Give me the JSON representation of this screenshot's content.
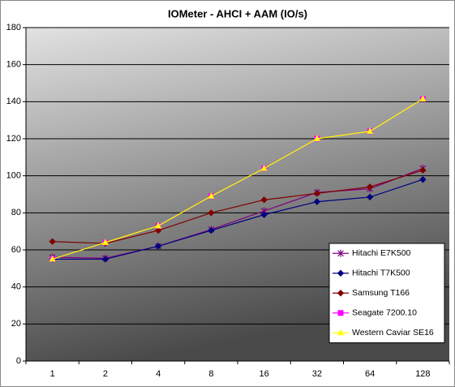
{
  "chart_data": {
    "type": "line",
    "title": "IOMeter - AHCI + AAM (IO/s)",
    "categories": [
      "1",
      "2",
      "4",
      "8",
      "16",
      "32",
      "64",
      "128"
    ],
    "series": [
      {
        "name": "Hitachi E7K500",
        "color": "#800080",
        "marker": "star",
        "values": [
          56,
          55.5,
          62,
          71,
          81,
          91,
          93,
          104
        ]
      },
      {
        "name": "Hitachi T7K500",
        "color": "#000080",
        "marker": "diamond",
        "values": [
          55,
          55,
          62,
          70.5,
          79,
          86,
          88.5,
          98
        ]
      },
      {
        "name": "Samsung T166",
        "color": "#800000",
        "marker": "diamond",
        "values": [
          64.5,
          63.5,
          70.5,
          80,
          87,
          90.5,
          94,
          103
        ]
      },
      {
        "name": "Seagate 7200.10",
        "color": "#ff00ff",
        "marker": "square",
        "values": [
          55,
          64,
          73,
          89,
          104,
          120,
          124,
          141.5
        ]
      },
      {
        "name": "Western Caviar SE16",
        "color": "#ffff00",
        "marker": "triangle",
        "values": [
          55,
          64,
          73,
          89,
          104,
          120,
          124,
          141.5
        ]
      }
    ],
    "ylim": [
      0,
      180
    ],
    "yticks": [
      0,
      20,
      40,
      60,
      80,
      100,
      120,
      140,
      160,
      180
    ],
    "grid": true,
    "legend": "right"
  }
}
